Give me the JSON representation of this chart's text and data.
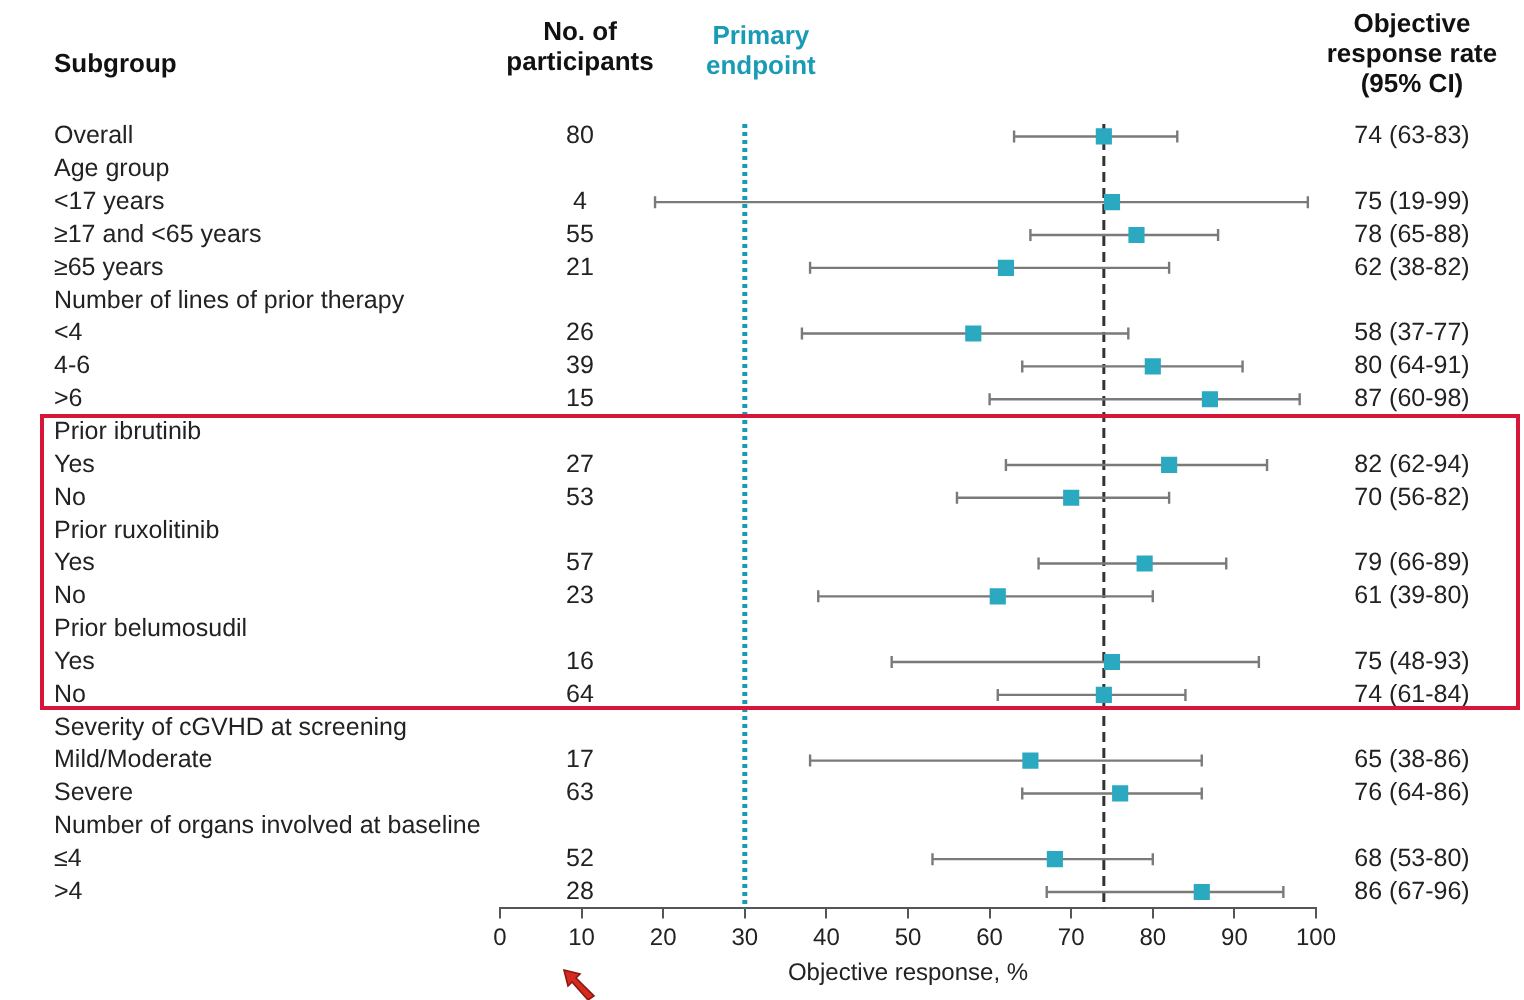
{
  "chart_data": {
    "type": "scatter",
    "orientation": "horizontal",
    "marker": "square",
    "color": "#2aa9c0",
    "categories": [
      "Overall",
      "Age group",
      "<17 years",
      "≥17 and <65 years",
      "≥65 years",
      "Number of lines of prior therapy",
      "<4",
      "4-6",
      ">6",
      "Prior ibrutinib",
      "Yes",
      "No",
      "Prior ruxolitinib",
      "Yes",
      "No",
      "Prior belumosudil",
      "Yes",
      "No",
      "Severity of cGVHD at screening",
      "Mild/Moderate",
      "Severe",
      "Number of organs involved at baseline",
      "≤4",
      ">4"
    ],
    "values": [
      74,
      null,
      75,
      78,
      62,
      null,
      58,
      80,
      87,
      null,
      82,
      70,
      null,
      79,
      61,
      null,
      75,
      74,
      null,
      65,
      76,
      null,
      68,
      86
    ],
    "errors": [
      [
        63,
        83
      ],
      null,
      [
        19,
        99
      ],
      [
        65,
        88
      ],
      [
        38,
        82
      ],
      null,
      [
        37,
        77
      ],
      [
        64,
        91
      ],
      [
        60,
        98
      ],
      null,
      [
        62,
        94
      ],
      [
        56,
        82
      ],
      null,
      [
        66,
        89
      ],
      [
        39,
        80
      ],
      null,
      [
        48,
        93
      ],
      [
        61,
        84
      ],
      null,
      [
        38,
        86
      ],
      [
        64,
        86
      ],
      null,
      [
        53,
        80
      ],
      [
        67,
        96
      ]
    ],
    "value_labels": [
      "74 (63-83)",
      null,
      "75 (19-99)",
      "78 (65-88)",
      "62 (38-82)",
      null,
      "58 (37-77)",
      "80 (64-91)",
      "87 (60-98)",
      null,
      "82 (62-94)",
      "70 (56-82)",
      null,
      "79 (66-89)",
      "61 (39-80)",
      null,
      "75 (48-93)",
      "74 (61-84)",
      null,
      "65 (38-86)",
      "76 (64-86)",
      null,
      "68 (53-80)",
      "86 (67-96)"
    ],
    "xlabel": "Objective response, %",
    "xlim": [
      0,
      100
    ],
    "xticks": [
      0,
      10,
      20,
      30,
      40,
      50,
      60,
      70,
      80,
      90,
      100
    ],
    "ref_lines": [
      {
        "axis": "x",
        "value": 30,
        "label": "Primary endpoint",
        "color": "#1a9bb5",
        "line_style": "dotted"
      },
      {
        "axis": "x",
        "value": 74,
        "color": "#333333",
        "line_style": "dashed"
      }
    ],
    "annotations": [
      "Subgroup",
      "No. of participants",
      "Objective response rate (95% CI)",
      "80",
      "4",
      "55",
      "21",
      "26",
      "39",
      "15",
      "27",
      "53",
      "57",
      "23",
      "16",
      "64",
      "17",
      "63",
      "52",
      "28"
    ]
  }
}
